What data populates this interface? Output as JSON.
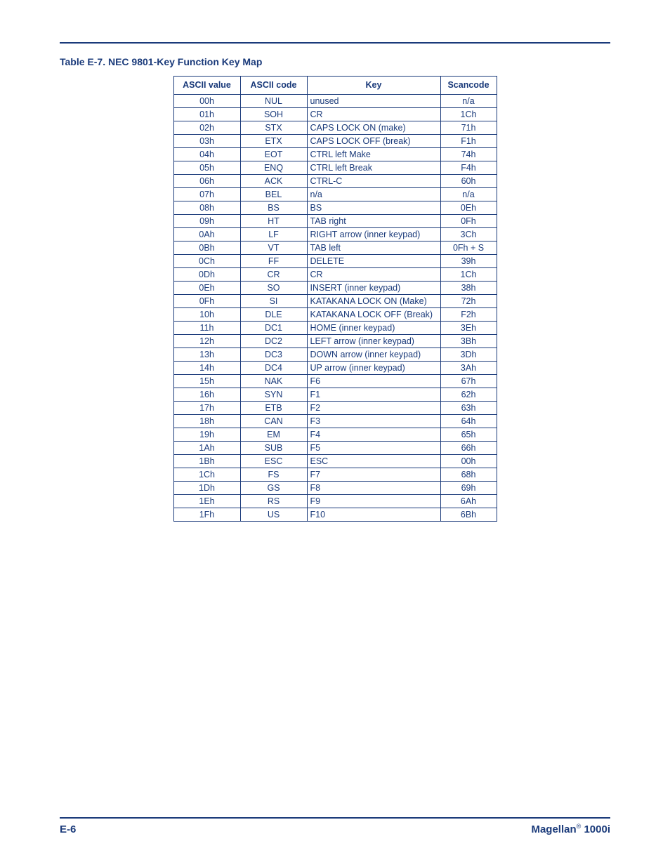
{
  "title": "Table E-7. NEC 9801-Key Function Key Map",
  "columns": [
    "ASCII value",
    "ASCII code",
    "Key",
    "Scancode"
  ],
  "rows": [
    {
      "val": "00h",
      "code": "NUL",
      "key": "unused",
      "scan": "n/a"
    },
    {
      "val": "01h",
      "code": "SOH",
      "key": "CR",
      "scan": "1Ch"
    },
    {
      "val": "02h",
      "code": "STX",
      "key": "CAPS LOCK ON (make)",
      "scan": "71h"
    },
    {
      "val": "03h",
      "code": "ETX",
      "key": "CAPS LOCK OFF (break)",
      "scan": "F1h"
    },
    {
      "val": "04h",
      "code": "EOT",
      "key": "CTRL left Make",
      "scan": "74h"
    },
    {
      "val": "05h",
      "code": "ENQ",
      "key": "CTRL left Break",
      "scan": "F4h"
    },
    {
      "val": "06h",
      "code": "ACK",
      "key": "CTRL-C",
      "scan": "60h"
    },
    {
      "val": "07h",
      "code": "BEL",
      "key": "n/a",
      "scan": "n/a"
    },
    {
      "val": "08h",
      "code": "BS",
      "key": "BS",
      "scan": "0Eh"
    },
    {
      "val": "09h",
      "code": "HT",
      "key": "TAB right",
      "scan": "0Fh"
    },
    {
      "val": "0Ah",
      "code": "LF",
      "key": "RIGHT arrow (inner keypad)",
      "scan": "3Ch"
    },
    {
      "val": "0Bh",
      "code": "VT",
      "key": "TAB left",
      "scan": "0Fh + S"
    },
    {
      "val": "0Ch",
      "code": "FF",
      "key": "DELETE",
      "scan": "39h"
    },
    {
      "val": "0Dh",
      "code": "CR",
      "key": "CR",
      "scan": "1Ch"
    },
    {
      "val": "0Eh",
      "code": "SO",
      "key": "INSERT (inner keypad)",
      "scan": "38h"
    },
    {
      "val": "0Fh",
      "code": "SI",
      "key": "KATAKANA LOCK ON (Make)",
      "scan": "72h"
    },
    {
      "val": "10h",
      "code": "DLE",
      "key": "KATAKANA LOCK OFF (Break)",
      "scan": "F2h"
    },
    {
      "val": "11h",
      "code": "DC1",
      "key": "HOME (inner keypad)",
      "scan": "3Eh"
    },
    {
      "val": "12h",
      "code": "DC2",
      "key": "LEFT arrow (inner keypad)",
      "scan": "3Bh"
    },
    {
      "val": "13h",
      "code": "DC3",
      "key": "DOWN arrow (inner keypad)",
      "scan": "3Dh"
    },
    {
      "val": "14h",
      "code": "DC4",
      "key": "UP arrow (inner keypad)",
      "scan": "3Ah"
    },
    {
      "val": "15h",
      "code": "NAK",
      "key": "F6",
      "scan": "67h"
    },
    {
      "val": "16h",
      "code": "SYN",
      "key": "F1",
      "scan": "62h"
    },
    {
      "val": "17h",
      "code": "ETB",
      "key": "F2",
      "scan": "63h"
    },
    {
      "val": "18h",
      "code": "CAN",
      "key": "F3",
      "scan": "64h"
    },
    {
      "val": "19h",
      "code": "EM",
      "key": "F4",
      "scan": "65h"
    },
    {
      "val": "1Ah",
      "code": "SUB",
      "key": "F5",
      "scan": "66h"
    },
    {
      "val": "1Bh",
      "code": "ESC",
      "key": "ESC",
      "scan": "00h"
    },
    {
      "val": "1Ch",
      "code": "FS",
      "key": "F7",
      "scan": "68h"
    },
    {
      "val": "1Dh",
      "code": "GS",
      "key": "F8",
      "scan": "69h"
    },
    {
      "val": "1Eh",
      "code": "RS",
      "key": "F9",
      "scan": "6Ah"
    },
    {
      "val": "1Fh",
      "code": "US",
      "key": "F10",
      "scan": "6Bh"
    }
  ],
  "footer": {
    "page": "E-6",
    "brand": "Magellan",
    "reg": "®",
    "model": " 1000i"
  }
}
